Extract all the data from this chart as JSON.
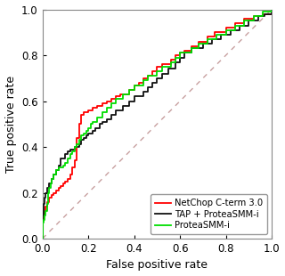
{
  "title": "",
  "xlabel": "False positive rate",
  "ylabel": "True positive rate",
  "xlim": [
    0,
    1
  ],
  "ylim": [
    0,
    1
  ],
  "xticks": [
    0,
    0.2,
    0.4,
    0.6,
    0.8,
    1
  ],
  "yticks": [
    0,
    0.2,
    0.4,
    0.6,
    0.8,
    1
  ],
  "diagonal_color": "#c8a0a0",
  "legend_labels": [
    "NetChop C-term 3.0",
    "TAP + ProteaSMM-i",
    "ProteaSMM-i"
  ],
  "legend_colors": [
    "#ff0000",
    "#111111",
    "#00dd00"
  ],
  "roc_red_pts": [
    [
      0.0,
      0.0
    ],
    [
      0.0,
      0.09
    ],
    [
      0.005,
      0.09
    ],
    [
      0.005,
      0.1
    ],
    [
      0.01,
      0.1
    ],
    [
      0.01,
      0.12
    ],
    [
      0.015,
      0.12
    ],
    [
      0.015,
      0.14
    ],
    [
      0.02,
      0.14
    ],
    [
      0.02,
      0.16
    ],
    [
      0.025,
      0.16
    ],
    [
      0.03,
      0.16
    ],
    [
      0.03,
      0.18
    ],
    [
      0.04,
      0.18
    ],
    [
      0.04,
      0.19
    ],
    [
      0.05,
      0.19
    ],
    [
      0.05,
      0.2
    ],
    [
      0.06,
      0.2
    ],
    [
      0.06,
      0.21
    ],
    [
      0.07,
      0.21
    ],
    [
      0.07,
      0.22
    ],
    [
      0.08,
      0.22
    ],
    [
      0.08,
      0.23
    ],
    [
      0.09,
      0.23
    ],
    [
      0.09,
      0.24
    ],
    [
      0.1,
      0.24
    ],
    [
      0.1,
      0.25
    ],
    [
      0.11,
      0.25
    ],
    [
      0.11,
      0.26
    ],
    [
      0.12,
      0.26
    ],
    [
      0.12,
      0.28
    ],
    [
      0.13,
      0.28
    ],
    [
      0.13,
      0.31
    ],
    [
      0.14,
      0.31
    ],
    [
      0.14,
      0.34
    ],
    [
      0.15,
      0.34
    ],
    [
      0.15,
      0.44
    ],
    [
      0.16,
      0.44
    ],
    [
      0.16,
      0.5
    ],
    [
      0.17,
      0.5
    ],
    [
      0.17,
      0.54
    ],
    [
      0.18,
      0.54
    ],
    [
      0.18,
      0.55
    ],
    [
      0.19,
      0.55
    ],
    [
      0.2,
      0.55
    ],
    [
      0.2,
      0.56
    ],
    [
      0.21,
      0.56
    ],
    [
      0.22,
      0.56
    ],
    [
      0.22,
      0.57
    ],
    [
      0.24,
      0.57
    ],
    [
      0.24,
      0.58
    ],
    [
      0.26,
      0.58
    ],
    [
      0.26,
      0.59
    ],
    [
      0.28,
      0.59
    ],
    [
      0.28,
      0.6
    ],
    [
      0.3,
      0.6
    ],
    [
      0.3,
      0.61
    ],
    [
      0.32,
      0.61
    ],
    [
      0.32,
      0.62
    ],
    [
      0.34,
      0.62
    ],
    [
      0.34,
      0.63
    ],
    [
      0.36,
      0.63
    ],
    [
      0.38,
      0.63
    ],
    [
      0.38,
      0.65
    ],
    [
      0.4,
      0.65
    ],
    [
      0.4,
      0.67
    ],
    [
      0.42,
      0.67
    ],
    [
      0.42,
      0.68
    ],
    [
      0.44,
      0.68
    ],
    [
      0.44,
      0.7
    ],
    [
      0.46,
      0.7
    ],
    [
      0.46,
      0.71
    ],
    [
      0.48,
      0.71
    ],
    [
      0.48,
      0.73
    ],
    [
      0.5,
      0.73
    ],
    [
      0.5,
      0.75
    ],
    [
      0.52,
      0.75
    ],
    [
      0.52,
      0.76
    ],
    [
      0.54,
      0.76
    ],
    [
      0.56,
      0.76
    ],
    [
      0.56,
      0.78
    ],
    [
      0.58,
      0.78
    ],
    [
      0.58,
      0.8
    ],
    [
      0.6,
      0.8
    ],
    [
      0.6,
      0.81
    ],
    [
      0.62,
      0.81
    ],
    [
      0.62,
      0.82
    ],
    [
      0.65,
      0.82
    ],
    [
      0.65,
      0.84
    ],
    [
      0.68,
      0.84
    ],
    [
      0.68,
      0.86
    ],
    [
      0.72,
      0.86
    ],
    [
      0.72,
      0.88
    ],
    [
      0.75,
      0.88
    ],
    [
      0.75,
      0.9
    ],
    [
      0.78,
      0.9
    ],
    [
      0.8,
      0.9
    ],
    [
      0.8,
      0.92
    ],
    [
      0.84,
      0.92
    ],
    [
      0.84,
      0.94
    ],
    [
      0.88,
      0.94
    ],
    [
      0.88,
      0.96
    ],
    [
      0.92,
      0.96
    ],
    [
      0.92,
      0.97
    ],
    [
      0.96,
      0.97
    ],
    [
      0.96,
      0.98
    ],
    [
      1.0,
      0.98
    ],
    [
      1.0,
      1.0
    ]
  ],
  "roc_black_pts": [
    [
      0.0,
      0.0
    ],
    [
      0.0,
      0.1
    ],
    [
      0.005,
      0.1
    ],
    [
      0.005,
      0.15
    ],
    [
      0.01,
      0.15
    ],
    [
      0.01,
      0.18
    ],
    [
      0.015,
      0.18
    ],
    [
      0.015,
      0.2
    ],
    [
      0.02,
      0.2
    ],
    [
      0.02,
      0.22
    ],
    [
      0.03,
      0.22
    ],
    [
      0.03,
      0.24
    ],
    [
      0.04,
      0.24
    ],
    [
      0.04,
      0.26
    ],
    [
      0.05,
      0.26
    ],
    [
      0.05,
      0.28
    ],
    [
      0.06,
      0.28
    ],
    [
      0.06,
      0.3
    ],
    [
      0.07,
      0.3
    ],
    [
      0.07,
      0.32
    ],
    [
      0.08,
      0.32
    ],
    [
      0.08,
      0.35
    ],
    [
      0.09,
      0.35
    ],
    [
      0.1,
      0.35
    ],
    [
      0.1,
      0.37
    ],
    [
      0.11,
      0.37
    ],
    [
      0.11,
      0.38
    ],
    [
      0.12,
      0.38
    ],
    [
      0.12,
      0.39
    ],
    [
      0.13,
      0.39
    ],
    [
      0.14,
      0.39
    ],
    [
      0.14,
      0.4
    ],
    [
      0.15,
      0.4
    ],
    [
      0.16,
      0.4
    ],
    [
      0.16,
      0.41
    ],
    [
      0.17,
      0.41
    ],
    [
      0.17,
      0.43
    ],
    [
      0.18,
      0.43
    ],
    [
      0.18,
      0.44
    ],
    [
      0.19,
      0.44
    ],
    [
      0.19,
      0.45
    ],
    [
      0.2,
      0.45
    ],
    [
      0.2,
      0.46
    ],
    [
      0.21,
      0.46
    ],
    [
      0.22,
      0.46
    ],
    [
      0.22,
      0.47
    ],
    [
      0.23,
      0.47
    ],
    [
      0.23,
      0.48
    ],
    [
      0.24,
      0.48
    ],
    [
      0.25,
      0.48
    ],
    [
      0.25,
      0.5
    ],
    [
      0.26,
      0.5
    ],
    [
      0.26,
      0.51
    ],
    [
      0.27,
      0.51
    ],
    [
      0.28,
      0.51
    ],
    [
      0.28,
      0.52
    ],
    [
      0.29,
      0.52
    ],
    [
      0.3,
      0.52
    ],
    [
      0.3,
      0.54
    ],
    [
      0.32,
      0.54
    ],
    [
      0.32,
      0.56
    ],
    [
      0.34,
      0.56
    ],
    [
      0.35,
      0.56
    ],
    [
      0.35,
      0.58
    ],
    [
      0.38,
      0.58
    ],
    [
      0.38,
      0.6
    ],
    [
      0.4,
      0.6
    ],
    [
      0.4,
      0.62
    ],
    [
      0.42,
      0.62
    ],
    [
      0.44,
      0.62
    ],
    [
      0.44,
      0.64
    ],
    [
      0.46,
      0.64
    ],
    [
      0.46,
      0.66
    ],
    [
      0.48,
      0.66
    ],
    [
      0.48,
      0.68
    ],
    [
      0.5,
      0.68
    ],
    [
      0.5,
      0.7
    ],
    [
      0.52,
      0.7
    ],
    [
      0.52,
      0.72
    ],
    [
      0.55,
      0.72
    ],
    [
      0.55,
      0.74
    ],
    [
      0.58,
      0.74
    ],
    [
      0.58,
      0.77
    ],
    [
      0.6,
      0.77
    ],
    [
      0.6,
      0.79
    ],
    [
      0.62,
      0.79
    ],
    [
      0.62,
      0.81
    ],
    [
      0.65,
      0.81
    ],
    [
      0.65,
      0.83
    ],
    [
      0.68,
      0.83
    ],
    [
      0.7,
      0.83
    ],
    [
      0.7,
      0.85
    ],
    [
      0.74,
      0.85
    ],
    [
      0.74,
      0.87
    ],
    [
      0.78,
      0.87
    ],
    [
      0.78,
      0.89
    ],
    [
      0.82,
      0.89
    ],
    [
      0.82,
      0.91
    ],
    [
      0.86,
      0.91
    ],
    [
      0.86,
      0.93
    ],
    [
      0.9,
      0.93
    ],
    [
      0.9,
      0.95
    ],
    [
      0.94,
      0.95
    ],
    [
      0.94,
      0.97
    ],
    [
      0.97,
      0.97
    ],
    [
      0.97,
      0.98
    ],
    [
      1.0,
      0.98
    ],
    [
      1.0,
      1.0
    ]
  ],
  "roc_green_pts": [
    [
      0.0,
      0.0
    ],
    [
      0.0,
      0.07
    ],
    [
      0.005,
      0.07
    ],
    [
      0.005,
      0.08
    ],
    [
      0.01,
      0.08
    ],
    [
      0.01,
      0.1
    ],
    [
      0.015,
      0.1
    ],
    [
      0.015,
      0.12
    ],
    [
      0.02,
      0.12
    ],
    [
      0.02,
      0.15
    ],
    [
      0.025,
      0.15
    ],
    [
      0.025,
      0.2
    ],
    [
      0.03,
      0.2
    ],
    [
      0.03,
      0.22
    ],
    [
      0.035,
      0.22
    ],
    [
      0.035,
      0.24
    ],
    [
      0.04,
      0.24
    ],
    [
      0.04,
      0.26
    ],
    [
      0.05,
      0.26
    ],
    [
      0.05,
      0.28
    ],
    [
      0.06,
      0.28
    ],
    [
      0.06,
      0.3
    ],
    [
      0.07,
      0.3
    ],
    [
      0.07,
      0.31
    ],
    [
      0.08,
      0.31
    ],
    [
      0.09,
      0.31
    ],
    [
      0.09,
      0.32
    ],
    [
      0.1,
      0.32
    ],
    [
      0.1,
      0.33
    ],
    [
      0.11,
      0.33
    ],
    [
      0.11,
      0.35
    ],
    [
      0.12,
      0.35
    ],
    [
      0.12,
      0.37
    ],
    [
      0.13,
      0.37
    ],
    [
      0.13,
      0.38
    ],
    [
      0.14,
      0.38
    ],
    [
      0.14,
      0.4
    ],
    [
      0.15,
      0.4
    ],
    [
      0.15,
      0.41
    ],
    [
      0.16,
      0.41
    ],
    [
      0.16,
      0.43
    ],
    [
      0.17,
      0.43
    ],
    [
      0.17,
      0.45
    ],
    [
      0.18,
      0.45
    ],
    [
      0.18,
      0.46
    ],
    [
      0.19,
      0.46
    ],
    [
      0.19,
      0.47
    ],
    [
      0.2,
      0.47
    ],
    [
      0.2,
      0.48
    ],
    [
      0.21,
      0.48
    ],
    [
      0.21,
      0.5
    ],
    [
      0.22,
      0.5
    ],
    [
      0.22,
      0.51
    ],
    [
      0.23,
      0.51
    ],
    [
      0.24,
      0.51
    ],
    [
      0.24,
      0.53
    ],
    [
      0.25,
      0.53
    ],
    [
      0.26,
      0.53
    ],
    [
      0.26,
      0.55
    ],
    [
      0.27,
      0.55
    ],
    [
      0.28,
      0.55
    ],
    [
      0.28,
      0.57
    ],
    [
      0.3,
      0.57
    ],
    [
      0.3,
      0.59
    ],
    [
      0.32,
      0.59
    ],
    [
      0.32,
      0.61
    ],
    [
      0.34,
      0.61
    ],
    [
      0.35,
      0.61
    ],
    [
      0.35,
      0.63
    ],
    [
      0.38,
      0.63
    ],
    [
      0.38,
      0.65
    ],
    [
      0.4,
      0.65
    ],
    [
      0.4,
      0.67
    ],
    [
      0.42,
      0.67
    ],
    [
      0.44,
      0.67
    ],
    [
      0.44,
      0.69
    ],
    [
      0.46,
      0.69
    ],
    [
      0.46,
      0.71
    ],
    [
      0.48,
      0.71
    ],
    [
      0.5,
      0.71
    ],
    [
      0.5,
      0.73
    ],
    [
      0.52,
      0.73
    ],
    [
      0.52,
      0.75
    ],
    [
      0.54,
      0.75
    ],
    [
      0.56,
      0.75
    ],
    [
      0.56,
      0.77
    ],
    [
      0.58,
      0.77
    ],
    [
      0.58,
      0.79
    ],
    [
      0.6,
      0.79
    ],
    [
      0.6,
      0.81
    ],
    [
      0.62,
      0.81
    ],
    [
      0.65,
      0.81
    ],
    [
      0.65,
      0.83
    ],
    [
      0.68,
      0.83
    ],
    [
      0.68,
      0.85
    ],
    [
      0.72,
      0.85
    ],
    [
      0.72,
      0.87
    ],
    [
      0.76,
      0.87
    ],
    [
      0.76,
      0.89
    ],
    [
      0.8,
      0.89
    ],
    [
      0.8,
      0.91
    ],
    [
      0.84,
      0.91
    ],
    [
      0.84,
      0.93
    ],
    [
      0.88,
      0.93
    ],
    [
      0.88,
      0.95
    ],
    [
      0.92,
      0.95
    ],
    [
      0.92,
      0.97
    ],
    [
      0.96,
      0.97
    ],
    [
      0.96,
      0.99
    ],
    [
      1.0,
      0.99
    ],
    [
      1.0,
      1.0
    ]
  ],
  "line_width": 1.3,
  "font_size": 9,
  "tick_font_size": 8.5
}
